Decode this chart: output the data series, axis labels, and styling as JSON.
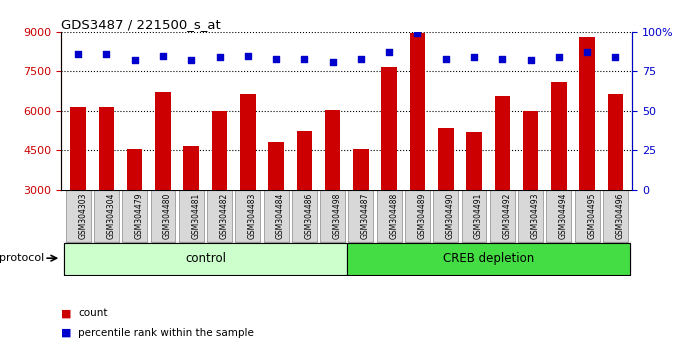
{
  "title": "GDS3487 / 221500_s_at",
  "samples": [
    "GSM304303",
    "GSM304304",
    "GSM304479",
    "GSM304480",
    "GSM304481",
    "GSM304482",
    "GSM304483",
    "GSM304484",
    "GSM304486",
    "GSM304498",
    "GSM304487",
    "GSM304488",
    "GSM304489",
    "GSM304490",
    "GSM304491",
    "GSM304492",
    "GSM304493",
    "GSM304494",
    "GSM304495",
    "GSM304496"
  ],
  "counts": [
    6150,
    6150,
    4550,
    6700,
    4650,
    6000,
    6650,
    4800,
    5250,
    6050,
    4550,
    7650,
    8950,
    5350,
    5200,
    6550,
    6000,
    7100,
    8800,
    6650
  ],
  "percentiles": [
    86,
    86,
    82,
    85,
    82,
    84,
    85,
    83,
    83,
    81,
    83,
    87,
    99,
    83,
    84,
    83,
    82,
    84,
    87,
    84
  ],
  "bar_color": "#cc0000",
  "dot_color": "#0000cc",
  "ymin": 3000,
  "ymax": 9000,
  "ylim_left": [
    3000,
    9000
  ],
  "ylim_right": [
    0,
    100
  ],
  "yticks_left": [
    3000,
    4500,
    6000,
    7500,
    9000
  ],
  "yticks_right": [
    0,
    25,
    50,
    75,
    100
  ],
  "grid_values": [
    4500,
    6000,
    7500,
    9000
  ],
  "control_count": 10,
  "creb_count": 10,
  "control_label": "control",
  "creb_label": "CREB depletion",
  "protocol_label": "protocol",
  "legend_count_label": "count",
  "legend_pct_label": "percentile rank within the sample",
  "bg_color": "#ffffff",
  "plot_bg_color": "#ffffff",
  "bar_width": 0.55,
  "control_bg": "#ccffcc",
  "creb_bg": "#44dd44",
  "tick_label_bg": "#d8d8d8",
  "label_fontsize": 7,
  "dot_size": 15
}
